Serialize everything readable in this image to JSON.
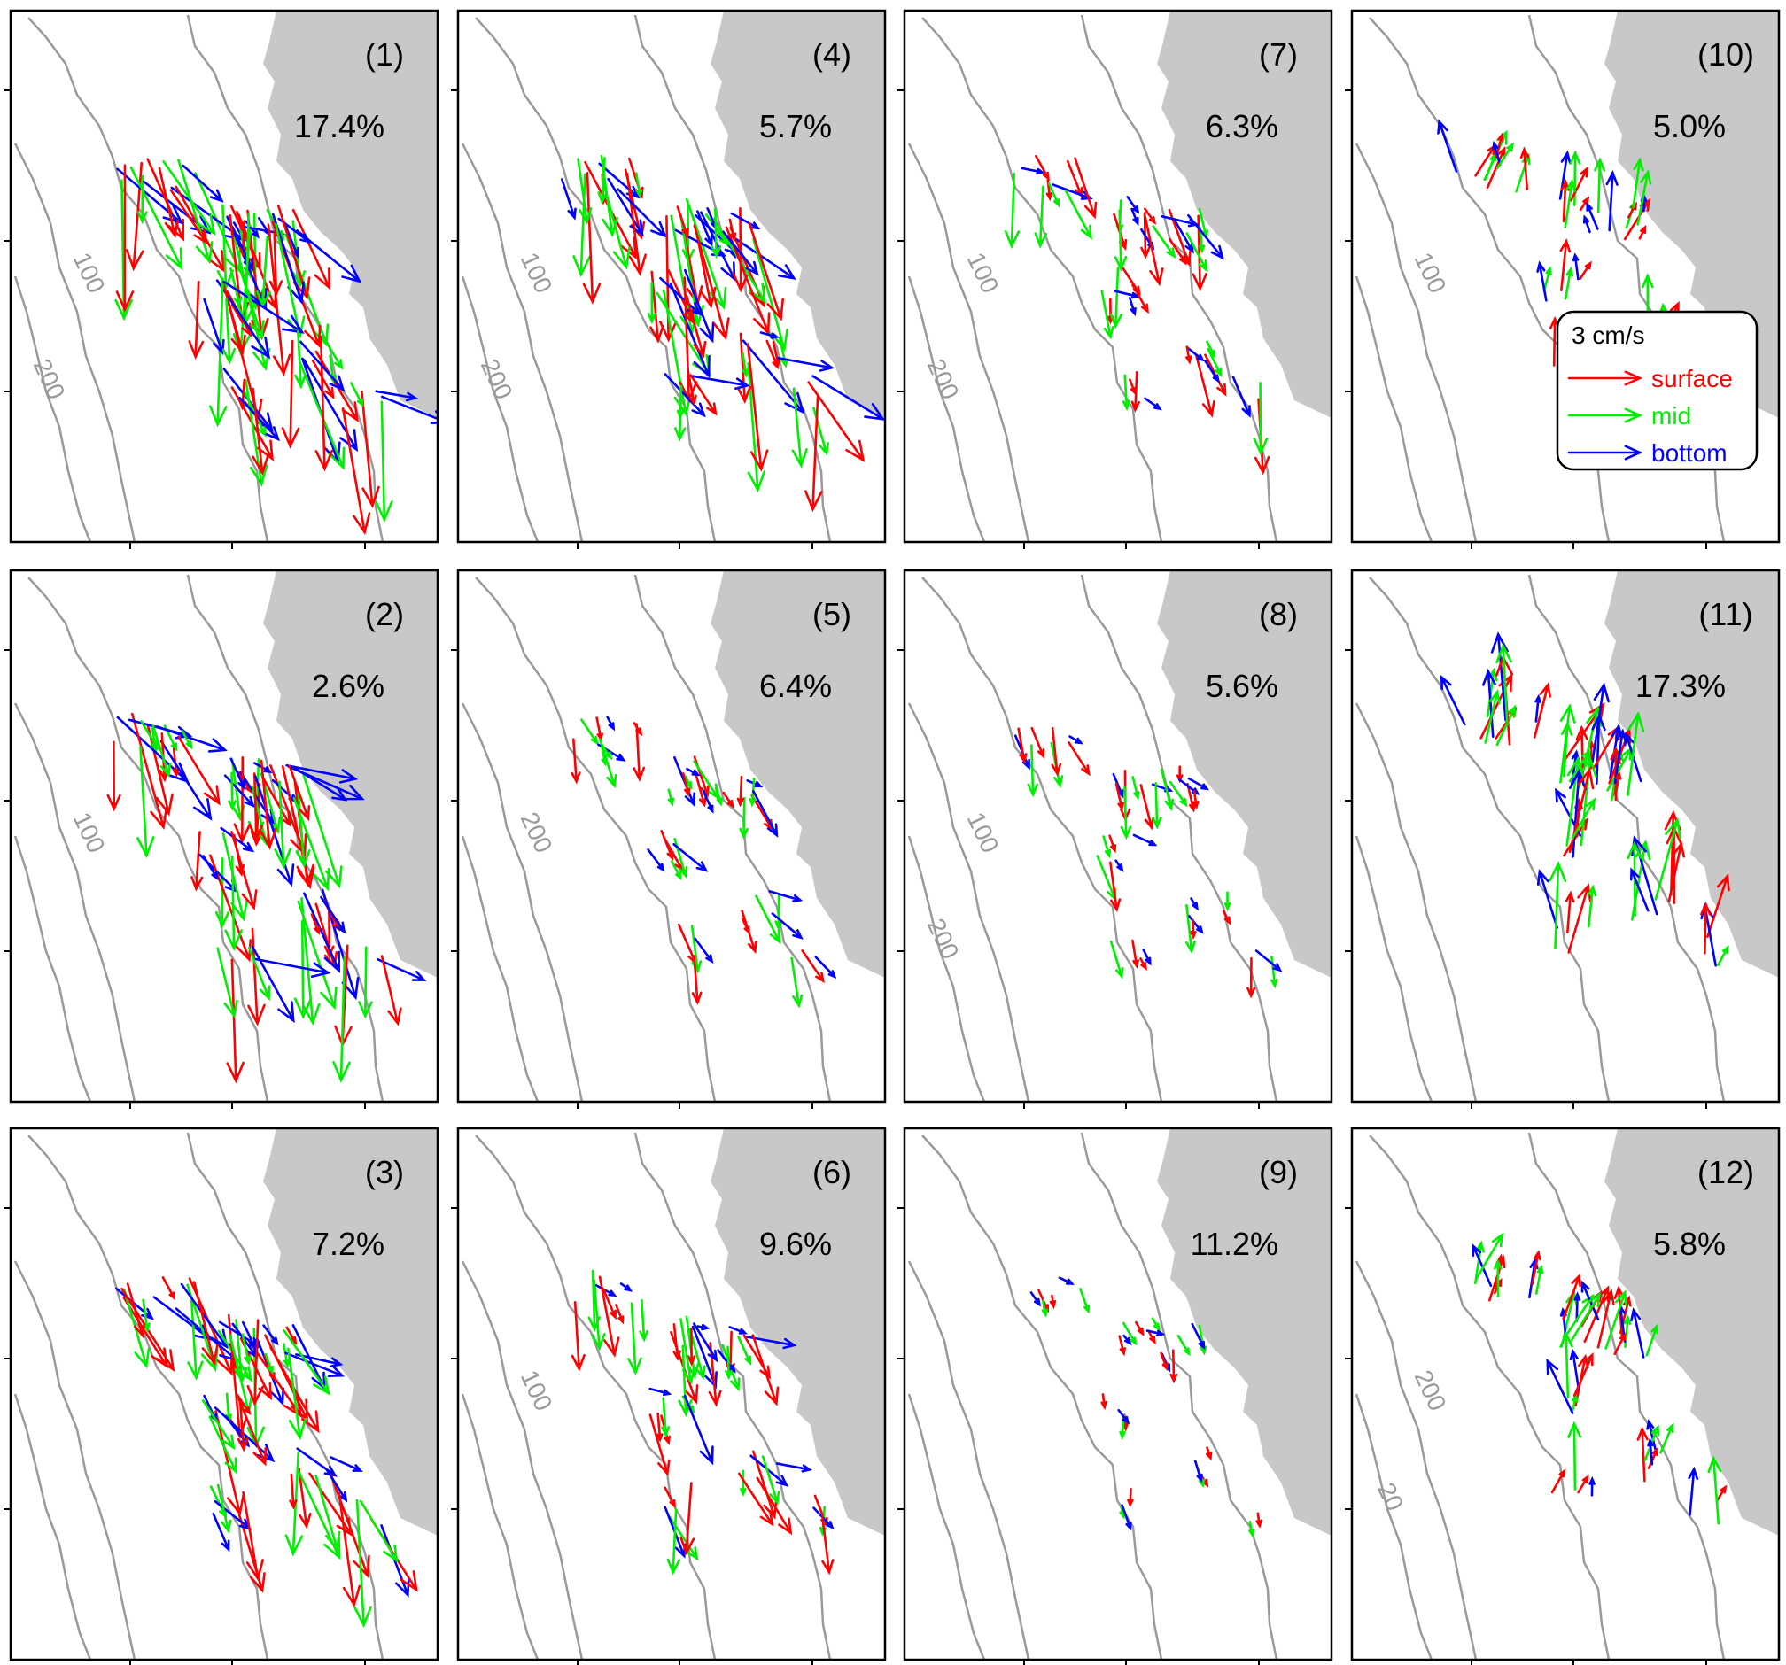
{
  "chart_data": {
    "type": "quiver-map-panels",
    "description_rows": 3,
    "description_cols": 4,
    "colors": {
      "surface": "#ff0000",
      "mid": "#00ee00",
      "bottom": "#0000ff",
      "land": "#c8c8c8",
      "contour": "#9a9a9a",
      "frame": "#000000"
    },
    "legend": {
      "scale_label": "3 cm/s",
      "entries": [
        {
          "key": "surface",
          "label": "surface"
        },
        {
          "key": "mid",
          "label": "mid"
        },
        {
          "key": "bottom",
          "label": "bottom"
        }
      ]
    },
    "panels": [
      {
        "id": "(1)",
        "percent": "17.4%",
        "intensity": 1.0,
        "contours": [
          "100",
          "200"
        ]
      },
      {
        "id": "(2)",
        "percent": "2.6%",
        "intensity": 0.85,
        "contours": [
          "100"
        ]
      },
      {
        "id": "(3)",
        "percent": "7.2%",
        "intensity": 0.8,
        "contours": []
      },
      {
        "id": "(4)",
        "percent": "5.7%",
        "intensity": 0.85,
        "contours": [
          "100",
          "200"
        ]
      },
      {
        "id": "(5)",
        "percent": "6.4%",
        "intensity": 0.35,
        "contours": [
          "200"
        ]
      },
      {
        "id": "(6)",
        "percent": "9.6%",
        "intensity": 0.5,
        "contours": [
          "100"
        ]
      },
      {
        "id": "(7)",
        "percent": "6.3%",
        "intensity": 0.45,
        "contours": [
          "100",
          "200"
        ]
      },
      {
        "id": "(8)",
        "percent": "5.6%",
        "intensity": 0.3,
        "contours": [
          "100",
          "200"
        ]
      },
      {
        "id": "(9)",
        "percent": "11.2%",
        "intensity": 0.15,
        "contours": []
      },
      {
        "id": "(10)",
        "percent": "5.0%",
        "intensity": 0.35,
        "contours": [
          "100"
        ]
      },
      {
        "id": "(11)",
        "percent": "17.3%",
        "intensity": 0.55,
        "contours": []
      },
      {
        "id": "(12)",
        "percent": "5.8%",
        "intensity": 0.4,
        "contours": [
          "200",
          "20"
        ]
      }
    ]
  }
}
